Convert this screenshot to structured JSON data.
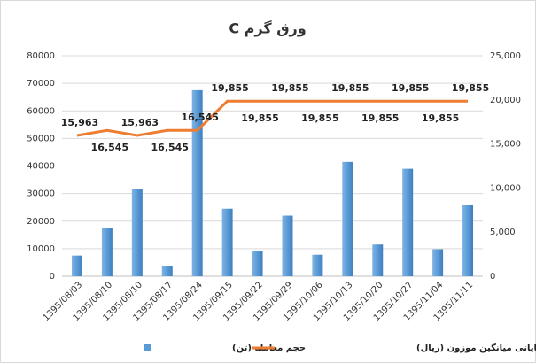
{
  "chart_data": {
    "type": "bar-line",
    "title": "ورق گرم C",
    "categories": [
      "1395/08/03",
      "1395/08/10",
      "1395/08/10",
      "1395/08/17",
      "1395/08/24",
      "1395/09/15",
      "1395/09/22",
      "1395/09/29",
      "1395/10/06",
      "1395/10/13",
      "1395/10/20",
      "1395/10/27",
      "1395/11/04",
      "1395/11/11"
    ],
    "series": [
      {
        "name": "حجم معامله (تن)",
        "type": "bar",
        "color": "#5b9bd5",
        "values": [
          7500,
          17500,
          31500,
          3800,
          67500,
          24500,
          9000,
          22000,
          7800,
          41500,
          11500,
          39000,
          9800,
          26000
        ]
      },
      {
        "name": "قیمت پایانی میانگین موزون (ریال)",
        "type": "line",
        "axis": "y2",
        "color": "#ed7d31",
        "values": [
          15963,
          16545,
          15963,
          16545,
          16545,
          19855,
          19855,
          19855,
          19855,
          19855,
          19855,
          19855,
          19855,
          19855
        ],
        "value_labels": [
          "15,963",
          "16,545",
          "15,963",
          "16,545",
          "16,545",
          "19,855",
          "19,855",
          "19,855",
          "19,855",
          "19,855",
          "19,855",
          "19,855",
          "19,855",
          "19,855"
        ]
      }
    ],
    "ylim": [
      0,
      80000
    ],
    "yticks": [
      0,
      10000,
      20000,
      30000,
      40000,
      50000,
      60000,
      70000,
      80000
    ],
    "y2lim": [
      0,
      25000
    ],
    "y2ticks": [
      0,
      {
        "value": 5000,
        "label": "5,000"
      },
      {
        "value": 10000,
        "label": "10,000"
      },
      {
        "value": 15000,
        "label": "15,000"
      },
      {
        "value": 20000,
        "label": "20,000"
      },
      {
        "value": 25000,
        "label": "25,000"
      }
    ],
    "grid": true,
    "legend": "bottom"
  }
}
